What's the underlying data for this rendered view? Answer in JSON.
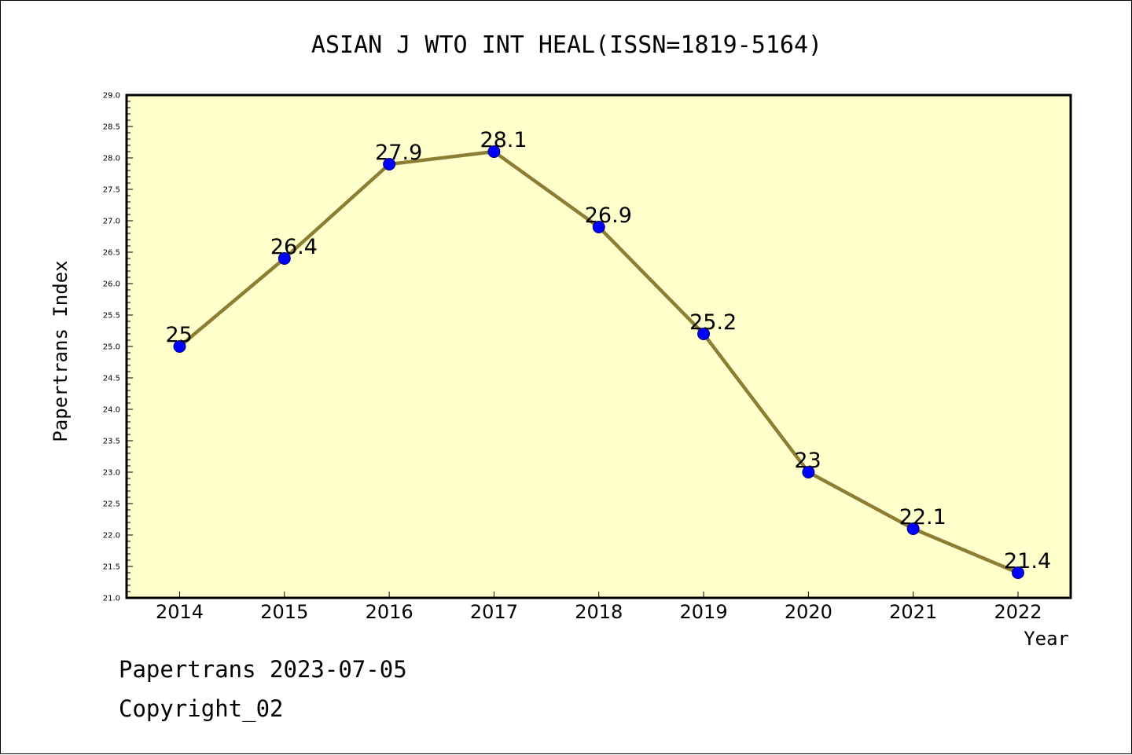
{
  "chart_data": {
    "type": "line",
    "title": "ASIAN J WTO INT HEAL(ISSN=1819-5164)",
    "xlabel": "Year",
    "ylabel": "Papertrans Index",
    "categories": [
      "2014",
      "2015",
      "2016",
      "2017",
      "2018",
      "2019",
      "2020",
      "2021",
      "2022"
    ],
    "series": [
      {
        "values": [
          25,
          26.4,
          27.9,
          28.1,
          26.9,
          25.2,
          23,
          22.1,
          21.4
        ],
        "data_labels": [
          "25",
          "26.4",
          "27.9",
          "28.1",
          "26.9",
          "25.2",
          "23",
          "22.1",
          "21.4"
        ]
      }
    ],
    "ylim": [
      21.0,
      29.0
    ],
    "yticks": [
      "21.0",
      "21.5",
      "22.0",
      "22.5",
      "23.0",
      "23.5",
      "24.0",
      "24.5",
      "25.0",
      "25.5",
      "26.0",
      "26.5",
      "27.0",
      "27.5",
      "28.0",
      "28.5",
      "29.0"
    ],
    "grid": false,
    "legend": "none"
  },
  "footer": {
    "line1": "Papertrans 2023-07-05",
    "line2": "Copyright_02"
  },
  "colors": {
    "plot_background": "#ffffcc",
    "line": "#8c7f35",
    "marker": "#0000ff",
    "marker_edge": "#00007a",
    "axis": "#000000"
  }
}
